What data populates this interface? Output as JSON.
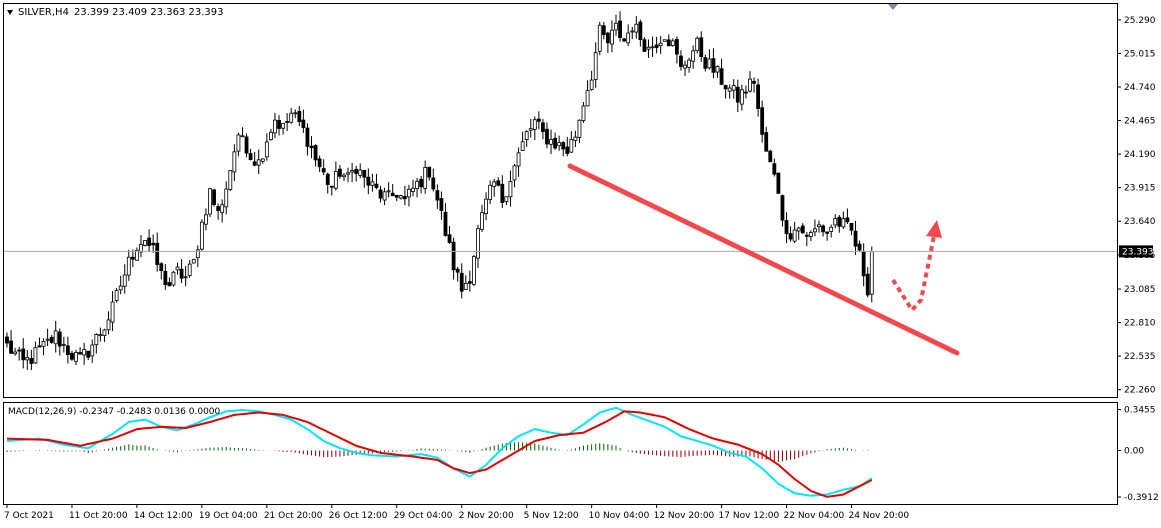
{
  "header": {
    "symbol_label": "SILVER,H4",
    "ohlc_text": "23.399 23.409 23.363 23.393",
    "menu_icon": "triangle-down-icon"
  },
  "price_panel": {
    "y_ticks": [
      "25.290",
      "25.015",
      "24.740",
      "24.465",
      "24.190",
      "23.915",
      "23.640",
      "23.365",
      "23.085",
      "22.810",
      "22.535",
      "22.260"
    ],
    "y_tick_values": [
      25.29,
      25.015,
      24.74,
      24.465,
      24.19,
      23.915,
      23.64,
      23.365,
      23.085,
      22.81,
      22.535,
      22.26
    ],
    "current_price_label": "23.393",
    "current_price": 23.393,
    "ylim": [
      22.2,
      25.42
    ]
  },
  "macd_panel": {
    "label": "MACD(12,26,9) -0.2347 -0.2483 0.0136 0.0000",
    "y_ticks": [
      "0.3455",
      "0.00",
      "-0.3912"
    ],
    "y_tick_values": [
      0.3455,
      0.0,
      -0.3912
    ],
    "ylim": [
      -0.45,
      0.4
    ]
  },
  "x_axis": {
    "labels": [
      "7 Oct 2021",
      "11 Oct 20:00",
      "14 Oct 12:00",
      "19 Oct 04:00",
      "21 Oct 20:00",
      "26 Oct 12:00",
      "29 Oct 04:00",
      "2 Nov 20:00",
      "5 Nov 12:00",
      "10 Nov 04:00",
      "12 Nov 20:00",
      "17 Nov 12:00",
      "22 Nov 04:00",
      "24 Nov 20:00"
    ],
    "label_bars": [
      0,
      16,
      32,
      48,
      64,
      80,
      96,
      112,
      128,
      144,
      160,
      176,
      192,
      208
    ]
  },
  "colors": {
    "bull_body": "#ffffff",
    "bear_body": "#000000",
    "wick": "#000000",
    "macd_main": "#00e5ff",
    "macd_signal": "#e00000",
    "hist_pos": "#006400",
    "hist_neg": "#8b0000",
    "trendline": "#f4484f",
    "arrow": "#f4484f",
    "price_line": "#a0aab4"
  },
  "chart_data": [
    {
      "type": "candlestick",
      "title": "SILVER,H4",
      "timeframe": "H4",
      "anchors_close": [
        [
          0,
          22.62
        ],
        [
          2,
          22.55
        ],
        [
          4,
          22.48
        ],
        [
          6,
          22.52
        ],
        [
          8,
          22.58
        ],
        [
          10,
          22.64
        ],
        [
          12,
          22.7
        ],
        [
          14,
          22.62
        ],
        [
          16,
          22.55
        ],
        [
          18,
          22.5
        ],
        [
          20,
          22.58
        ],
        [
          22,
          22.68
        ],
        [
          24,
          22.78
        ],
        [
          26,
          22.92
        ],
        [
          28,
          23.12
        ],
        [
          30,
          23.3
        ],
        [
          32,
          23.45
        ],
        [
          34,
          23.5
        ],
        [
          36,
          23.38
        ],
        [
          38,
          23.2
        ],
        [
          40,
          23.12
        ],
        [
          42,
          23.22
        ],
        [
          44,
          23.18
        ],
        [
          46,
          23.3
        ],
        [
          48,
          23.62
        ],
        [
          50,
          23.88
        ],
        [
          52,
          23.7
        ],
        [
          54,
          23.92
        ],
        [
          56,
          24.22
        ],
        [
          58,
          24.35
        ],
        [
          60,
          24.18
        ],
        [
          62,
          24.12
        ],
        [
          64,
          24.32
        ],
        [
          66,
          24.48
        ],
        [
          68,
          24.4
        ],
        [
          70,
          24.52
        ],
        [
          72,
          24.44
        ],
        [
          74,
          24.32
        ],
        [
          76,
          24.15
        ],
        [
          78,
          24.02
        ],
        [
          80,
          23.92
        ],
        [
          82,
          24.05
        ],
        [
          84,
          23.98
        ],
        [
          86,
          24.1
        ],
        [
          88,
          23.98
        ],
        [
          90,
          23.92
        ],
        [
          92,
          23.86
        ],
        [
          94,
          23.82
        ],
        [
          96,
          23.88
        ],
        [
          98,
          23.8
        ],
        [
          100,
          23.9
        ],
        [
          102,
          23.98
        ],
        [
          104,
          24.06
        ],
        [
          106,
          23.82
        ],
        [
          108,
          23.55
        ],
        [
          110,
          23.28
        ],
        [
          112,
          23.08
        ],
        [
          114,
          23.2
        ],
        [
          116,
          23.55
        ],
        [
          118,
          23.78
        ],
        [
          120,
          23.95
        ],
        [
          122,
          23.82
        ],
        [
          124,
          24.0
        ],
        [
          126,
          24.18
        ],
        [
          128,
          24.35
        ],
        [
          130,
          24.45
        ],
        [
          132,
          24.35
        ],
        [
          134,
          24.3
        ],
        [
          136,
          24.26
        ],
        [
          138,
          24.22
        ],
        [
          140,
          24.35
        ],
        [
          142,
          24.62
        ],
        [
          144,
          24.85
        ],
        [
          146,
          25.18
        ],
        [
          148,
          25.1
        ],
        [
          150,
          25.22
        ],
        [
          152,
          25.12
        ],
        [
          154,
          25.25
        ],
        [
          156,
          25.15
        ],
        [
          158,
          25.05
        ],
        [
          160,
          25.12
        ],
        [
          162,
          25.18
        ],
        [
          164,
          25.08
        ],
        [
          166,
          24.88
        ],
        [
          168,
          25.0
        ],
        [
          170,
          25.08
        ],
        [
          172,
          24.95
        ],
        [
          174,
          24.88
        ],
        [
          176,
          24.8
        ],
        [
          178,
          24.72
        ],
        [
          180,
          24.65
        ],
        [
          182,
          24.72
        ],
        [
          184,
          24.8
        ],
        [
          186,
          24.32
        ],
        [
          188,
          24.1
        ],
        [
          190,
          23.9
        ],
        [
          192,
          23.5
        ],
        [
          194,
          23.62
        ],
        [
          196,
          23.55
        ],
        [
          198,
          23.52
        ],
        [
          200,
          23.6
        ],
        [
          202,
          23.55
        ],
        [
          204,
          23.65
        ],
        [
          206,
          23.6
        ],
        [
          208,
          23.55
        ],
        [
          210,
          23.35
        ],
        [
          212,
          23.1
        ],
        [
          213,
          23.393
        ]
      ]
    },
    {
      "type": "line",
      "title": "MACD(12,26,9)",
      "series": [
        {
          "name": "MACD",
          "anchors": [
            [
              0,
              0.08
            ],
            [
              8,
              0.1
            ],
            [
              14,
              0.05
            ],
            [
              20,
              0.02
            ],
            [
              26,
              0.14
            ],
            [
              30,
              0.24
            ],
            [
              34,
              0.26
            ],
            [
              38,
              0.2
            ],
            [
              42,
              0.17
            ],
            [
              46,
              0.22
            ],
            [
              50,
              0.28
            ],
            [
              54,
              0.33
            ],
            [
              58,
              0.34
            ],
            [
              62,
              0.33
            ],
            [
              66,
              0.3
            ],
            [
              70,
              0.26
            ],
            [
              74,
              0.18
            ],
            [
              78,
              0.08
            ],
            [
              82,
              0.02
            ],
            [
              86,
              -0.02
            ],
            [
              90,
              -0.04
            ],
            [
              96,
              -0.05
            ],
            [
              102,
              -0.03
            ],
            [
              106,
              -0.06
            ],
            [
              110,
              -0.15
            ],
            [
              114,
              -0.22
            ],
            [
              118,
              -0.12
            ],
            [
              122,
              0.02
            ],
            [
              126,
              0.12
            ],
            [
              130,
              0.18
            ],
            [
              134,
              0.15
            ],
            [
              138,
              0.13
            ],
            [
              142,
              0.22
            ],
            [
              146,
              0.32
            ],
            [
              150,
              0.36
            ],
            [
              154,
              0.3
            ],
            [
              158,
              0.25
            ],
            [
              162,
              0.2
            ],
            [
              166,
              0.12
            ],
            [
              170,
              0.08
            ],
            [
              174,
              0.04
            ],
            [
              178,
              -0.02
            ],
            [
              182,
              -0.05
            ],
            [
              186,
              -0.15
            ],
            [
              190,
              -0.28
            ],
            [
              194,
              -0.36
            ],
            [
              198,
              -0.38
            ],
            [
              202,
              -0.37
            ],
            [
              206,
              -0.33
            ],
            [
              210,
              -0.3
            ],
            [
              213,
              -0.2347
            ]
          ]
        },
        {
          "name": "Signal",
          "anchors": [
            [
              0,
              0.1
            ],
            [
              10,
              0.09
            ],
            [
              18,
              0.04
            ],
            [
              26,
              0.1
            ],
            [
              32,
              0.18
            ],
            [
              38,
              0.2
            ],
            [
              44,
              0.19
            ],
            [
              50,
              0.24
            ],
            [
              56,
              0.3
            ],
            [
              62,
              0.32
            ],
            [
              68,
              0.3
            ],
            [
              74,
              0.24
            ],
            [
              80,
              0.14
            ],
            [
              86,
              0.04
            ],
            [
              92,
              -0.02
            ],
            [
              100,
              -0.05
            ],
            [
              106,
              -0.08
            ],
            [
              110,
              -0.15
            ],
            [
              114,
              -0.19
            ],
            [
              118,
              -0.16
            ],
            [
              124,
              -0.04
            ],
            [
              130,
              0.08
            ],
            [
              136,
              0.13
            ],
            [
              142,
              0.15
            ],
            [
              148,
              0.25
            ],
            [
              152,
              0.33
            ],
            [
              156,
              0.32
            ],
            [
              162,
              0.28
            ],
            [
              168,
              0.18
            ],
            [
              174,
              0.1
            ],
            [
              180,
              0.05
            ],
            [
              186,
              -0.03
            ],
            [
              190,
              -0.12
            ],
            [
              194,
              -0.24
            ],
            [
              198,
              -0.34
            ],
            [
              202,
              -0.39
            ],
            [
              206,
              -0.37
            ],
            [
              210,
              -0.3
            ],
            [
              213,
              -0.2483
            ]
          ]
        }
      ],
      "ylim": [
        -0.45,
        0.4
      ]
    }
  ]
}
